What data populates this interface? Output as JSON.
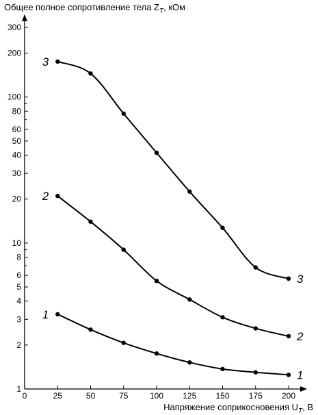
{
  "chart_data": {
    "type": "line",
    "ylabel": "Общее полное сопротивление тела Z",
    "ylabel_sub": "T",
    "ylabel_unit": ", кОм",
    "xlabel": "Напряжение соприкосновения U",
    "xlabel_sub": "T",
    "xlabel_unit": ", В",
    "x_ticks": [
      0,
      25,
      50,
      75,
      100,
      125,
      150,
      175,
      200
    ],
    "y_scale": "log",
    "y_ticks": [
      1,
      2,
      3,
      4,
      5,
      6,
      8,
      10,
      20,
      30,
      40,
      50,
      60,
      80,
      100,
      200,
      300
    ],
    "xlim": [
      0,
      220
    ],
    "ylim": [
      1,
      380
    ],
    "grid": false,
    "series": [
      {
        "name": "1",
        "x": [
          25,
          50,
          75,
          100,
          125,
          150,
          175,
          200
        ],
        "values": [
          3.25,
          2.55,
          2.07,
          1.75,
          1.52,
          1.37,
          1.3,
          1.25
        ]
      },
      {
        "name": "2",
        "x": [
          25,
          50,
          75,
          100,
          125,
          150,
          175,
          200
        ],
        "values": [
          21.0,
          14.0,
          9.0,
          5.5,
          4.1,
          3.1,
          2.6,
          2.3
        ]
      },
      {
        "name": "3",
        "x": [
          25,
          50,
          75,
          100,
          125,
          150,
          175,
          200
        ],
        "values": [
          175,
          145,
          77,
          41.5,
          22.5,
          12.7,
          6.8,
          5.7
        ]
      }
    ]
  }
}
